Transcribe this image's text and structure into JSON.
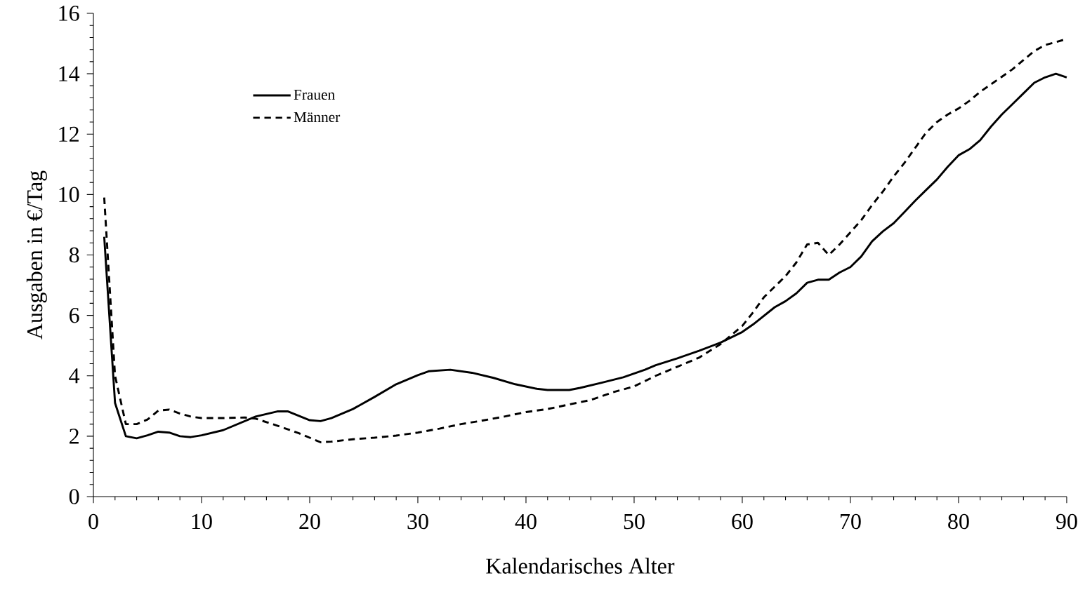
{
  "chart_data": {
    "type": "line",
    "xlabel": "Kalendarisches Alter",
    "ylabel": "Ausgaben in €/Tag",
    "xlim": [
      0,
      90
    ],
    "ylim": [
      0,
      16
    ],
    "xticks": [
      0,
      10,
      20,
      30,
      40,
      50,
      60,
      70,
      80,
      90
    ],
    "yticks": [
      0,
      2,
      4,
      6,
      8,
      10,
      12,
      14,
      16
    ],
    "grid": false,
    "legend": "top left",
    "marker": "none",
    "series": [
      {
        "name": "Frauen",
        "color": "#000000",
        "line_style": "solid",
        "x": [
          1,
          2,
          3,
          4,
          5,
          6,
          7,
          8,
          9,
          10,
          12,
          15,
          17,
          18,
          20,
          21,
          22,
          24,
          26,
          28,
          30,
          31,
          33,
          35,
          37,
          39,
          41,
          42,
          44,
          45,
          47,
          49,
          51,
          52,
          54,
          56,
          58,
          60,
          61,
          63,
          64,
          65,
          66,
          67,
          68,
          69,
          70,
          71,
          72,
          73,
          74,
          75,
          76,
          77,
          78,
          79,
          80,
          81,
          82,
          83,
          84,
          85,
          86,
          87,
          88,
          89,
          90
        ],
        "values": [
          8.6,
          3.1,
          2.0,
          1.93,
          2.03,
          2.15,
          2.12,
          2.0,
          1.97,
          2.03,
          2.2,
          2.65,
          2.82,
          2.82,
          2.53,
          2.5,
          2.6,
          2.9,
          3.3,
          3.72,
          4.02,
          4.15,
          4.2,
          4.1,
          3.93,
          3.72,
          3.57,
          3.53,
          3.53,
          3.6,
          3.77,
          3.95,
          4.2,
          4.35,
          4.58,
          4.83,
          5.1,
          5.45,
          5.7,
          6.27,
          6.47,
          6.73,
          7.08,
          7.18,
          7.18,
          7.42,
          7.6,
          7.95,
          8.45,
          8.78,
          9.05,
          9.42,
          9.8,
          10.15,
          10.5,
          10.92,
          11.3,
          11.5,
          11.8,
          12.25,
          12.65,
          13.0,
          13.35,
          13.7,
          13.88,
          14.0,
          13.88
        ]
      },
      {
        "name": "Männer",
        "color": "#000000",
        "line_style": "dashed",
        "x": [
          1,
          2,
          3,
          4,
          5,
          6,
          7,
          8,
          9,
          10,
          12,
          14,
          15,
          17,
          19,
          21,
          22,
          24,
          26,
          28,
          30,
          32,
          34,
          36,
          38,
          40,
          42,
          44,
          46,
          48,
          50,
          52,
          54,
          56,
          58,
          60,
          61,
          62,
          63,
          64,
          65,
          66,
          67,
          68,
          69,
          70,
          71,
          72,
          73,
          74,
          75,
          76,
          77,
          78,
          79,
          80,
          81,
          82,
          83,
          84,
          85,
          86,
          87,
          88,
          89,
          90
        ],
        "values": [
          9.9,
          4.0,
          2.4,
          2.4,
          2.55,
          2.85,
          2.88,
          2.75,
          2.65,
          2.6,
          2.6,
          2.62,
          2.58,
          2.35,
          2.1,
          1.8,
          1.82,
          1.9,
          1.95,
          2.02,
          2.12,
          2.25,
          2.4,
          2.52,
          2.65,
          2.8,
          2.9,
          3.05,
          3.2,
          3.45,
          3.65,
          4.0,
          4.3,
          4.6,
          5.05,
          5.65,
          6.1,
          6.6,
          6.95,
          7.3,
          7.75,
          8.35,
          8.4,
          8.0,
          8.35,
          8.75,
          9.15,
          9.65,
          10.1,
          10.6,
          11.05,
          11.55,
          12.05,
          12.4,
          12.65,
          12.85,
          13.1,
          13.4,
          13.65,
          13.9,
          14.15,
          14.45,
          14.75,
          14.95,
          15.05,
          15.15
        ]
      }
    ]
  }
}
